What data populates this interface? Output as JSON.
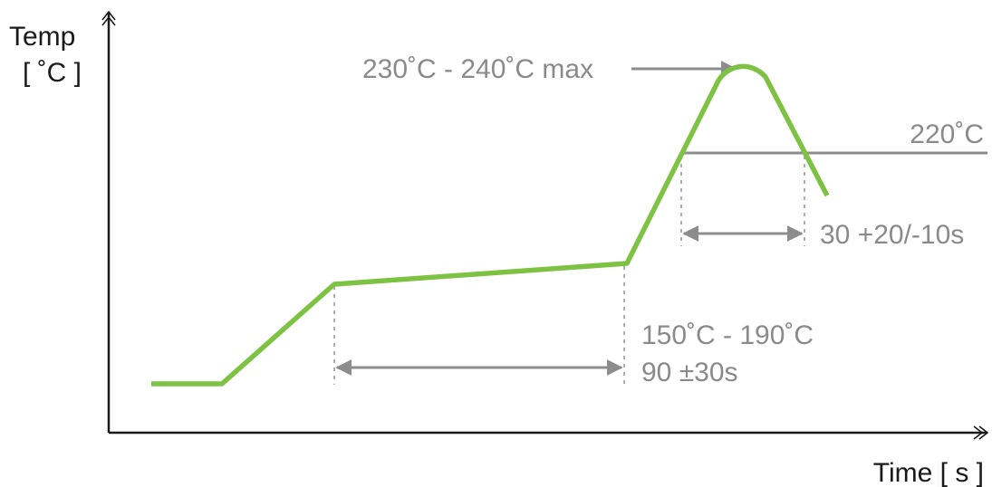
{
  "axes": {
    "y_label_line1": "Temp",
    "y_label_line2": "[ ˚C ]",
    "x_label": "Time [ s ]"
  },
  "annotations": {
    "peak": "230˚C - 240˚C max",
    "liquidus": "220˚C",
    "time_above_liquidus": "30 +20/-10s",
    "soak_temp": "150˚C - 190˚C",
    "soak_time": "90 ±30s"
  },
  "colors": {
    "profile": "#7dc242",
    "annotation": "#8a8a8a",
    "axis": "#1a1a1a"
  }
}
